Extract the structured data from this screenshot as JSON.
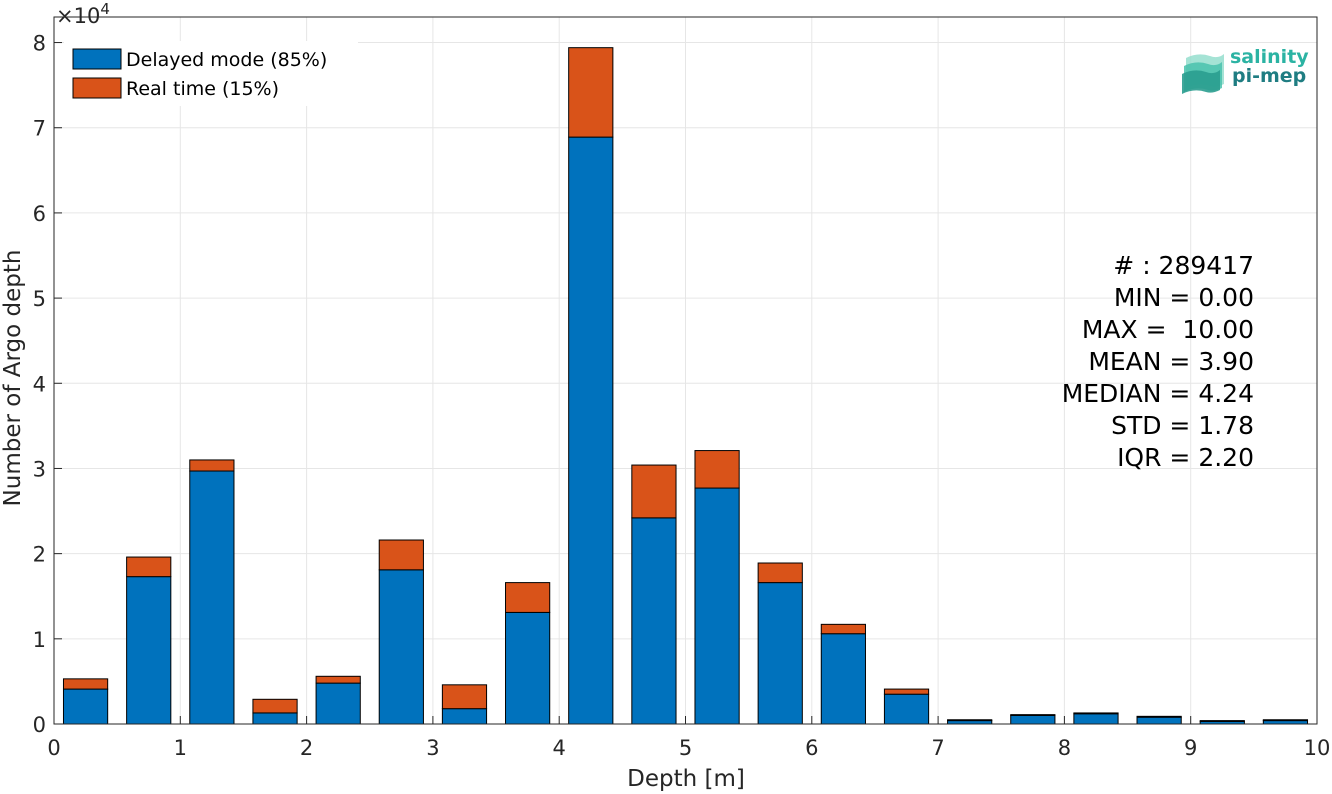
{
  "chart_data": {
    "type": "bar",
    "stacked": true,
    "xlabel": "Depth [m]",
    "ylabel": "Number of Argo depth",
    "exponent_label": "×10",
    "exponent_power": "4",
    "xlim": [
      0,
      10
    ],
    "ylim": [
      0,
      83000
    ],
    "xticks": [
      "0",
      "1",
      "2",
      "3",
      "4",
      "5",
      "6",
      "7",
      "8",
      "9",
      "10"
    ],
    "yticks": [
      "0",
      "1",
      "2",
      "3",
      "4",
      "5",
      "6",
      "7",
      "8"
    ],
    "grid": true,
    "legend_position": "top-left",
    "bin_centers": [
      0.25,
      0.75,
      1.25,
      1.75,
      2.25,
      2.75,
      3.25,
      3.75,
      4.25,
      4.75,
      5.25,
      5.75,
      6.25,
      6.75,
      7.25,
      7.75,
      8.25,
      8.75,
      9.25,
      9.75
    ],
    "series": [
      {
        "name": "Delayed mode (85%)",
        "color": "#0072BD",
        "values": [
          4100,
          17300,
          29700,
          1300,
          4800,
          18100,
          1800,
          13100,
          68900,
          24200,
          27700,
          16600,
          10600,
          3500,
          400,
          1000,
          1200,
          800,
          300,
          400
        ]
      },
      {
        "name": "Real time (15%)",
        "color": "#D95319",
        "values": [
          1200,
          2300,
          1300,
          1600,
          800,
          3500,
          2800,
          3500,
          10500,
          6200,
          4400,
          2300,
          1100,
          600,
          100,
          100,
          100,
          100,
          100,
          100
        ]
      }
    ],
    "stats": [
      "# : 289417",
      "MIN = 0.00",
      "MAX =  10.00",
      "MEAN = 3.90",
      "MEDIAN = 4.24",
      "STD = 1.78",
      "IQR = 2.20"
    ]
  },
  "logo": {
    "line1": "salinity",
    "line2": "pi-mep",
    "color1": "#2bb3a3",
    "color2": "#1f7d82"
  }
}
